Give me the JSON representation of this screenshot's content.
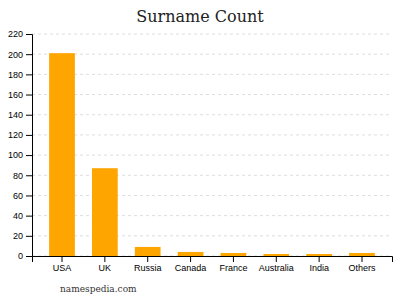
{
  "chart_data": {
    "type": "bar",
    "title": "Surname Count",
    "categories": [
      "USA",
      "UK",
      "Russia",
      "Canada",
      "France",
      "Australia",
      "India",
      "Others"
    ],
    "values": [
      201,
      87,
      9,
      4,
      3,
      2,
      2,
      3
    ],
    "color": "#FFA500",
    "ylim": [
      0,
      220
    ],
    "yticks": [
      0,
      20,
      40,
      60,
      80,
      100,
      120,
      140,
      160,
      180,
      200,
      220
    ],
    "grid": true,
    "annotations": [
      "namespedia.com"
    ]
  }
}
